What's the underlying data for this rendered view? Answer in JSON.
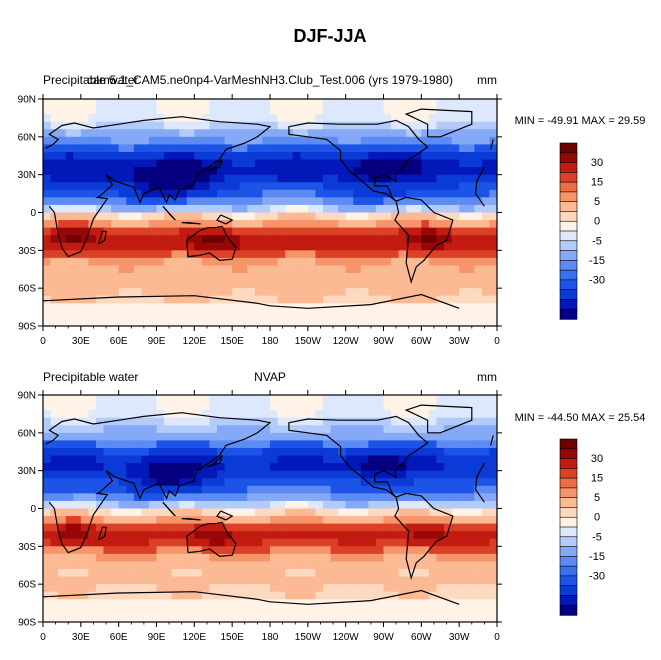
{
  "figure": {
    "title": "DJF-JJA"
  },
  "palette": [
    "#05007f",
    "#0318b8",
    "#0c3ad6",
    "#1d54e8",
    "#3a6ff0",
    "#5d8bf4",
    "#86a9f7",
    "#b3cbfb",
    "#dde8fd",
    "#fff2e6",
    "#fdd9c0",
    "#fbb994",
    "#f7946a",
    "#ef6b43",
    "#dc4127",
    "#c21b12",
    "#980707",
    "#6e0000"
  ],
  "colorbar_labels": [
    "30",
    "15",
    "5",
    "0",
    "-5",
    "-15",
    "-30"
  ],
  "x_ticks": [
    "0",
    "30E",
    "60E",
    "90E",
    "120E",
    "150E",
    "180",
    "150W",
    "120W",
    "90W",
    "60W",
    "30W",
    "0"
  ],
  "y_ticks": [
    "90N",
    "60N",
    "30N",
    "0",
    "30S",
    "60S",
    "90S"
  ],
  "chart_data": [
    {
      "type": "heatmap",
      "title_left": "Precipitable water",
      "title_center": "cam5.1_CAM5.ne0np4-VarMeshNH3.Club_Test.006 (yrs 1979-1980)",
      "units": "mm",
      "stats": "MIN = -49.91 MAX =  29.59",
      "min": -49.91,
      "max": 29.59,
      "xlim": [
        0,
        360
      ],
      "ylim": [
        -90,
        90
      ],
      "contour_levels": [
        -30,
        -25,
        -20,
        -15,
        -10,
        -5,
        -2,
        0,
        2,
        5,
        10,
        15,
        20,
        25,
        30
      ]
    },
    {
      "type": "heatmap",
      "title_left": "Precipitable water",
      "title_center": "NVAP",
      "units": "mm",
      "stats": "MIN = -44.50 MAX =  25.54",
      "min": -44.5,
      "max": 25.54,
      "xlim": [
        0,
        360
      ],
      "ylim": [
        -90,
        90
      ],
      "contour_levels": [
        -30,
        -25,
        -20,
        -15,
        -10,
        -5,
        -2,
        0,
        2,
        5,
        10,
        15,
        20,
        25,
        30
      ]
    }
  ]
}
